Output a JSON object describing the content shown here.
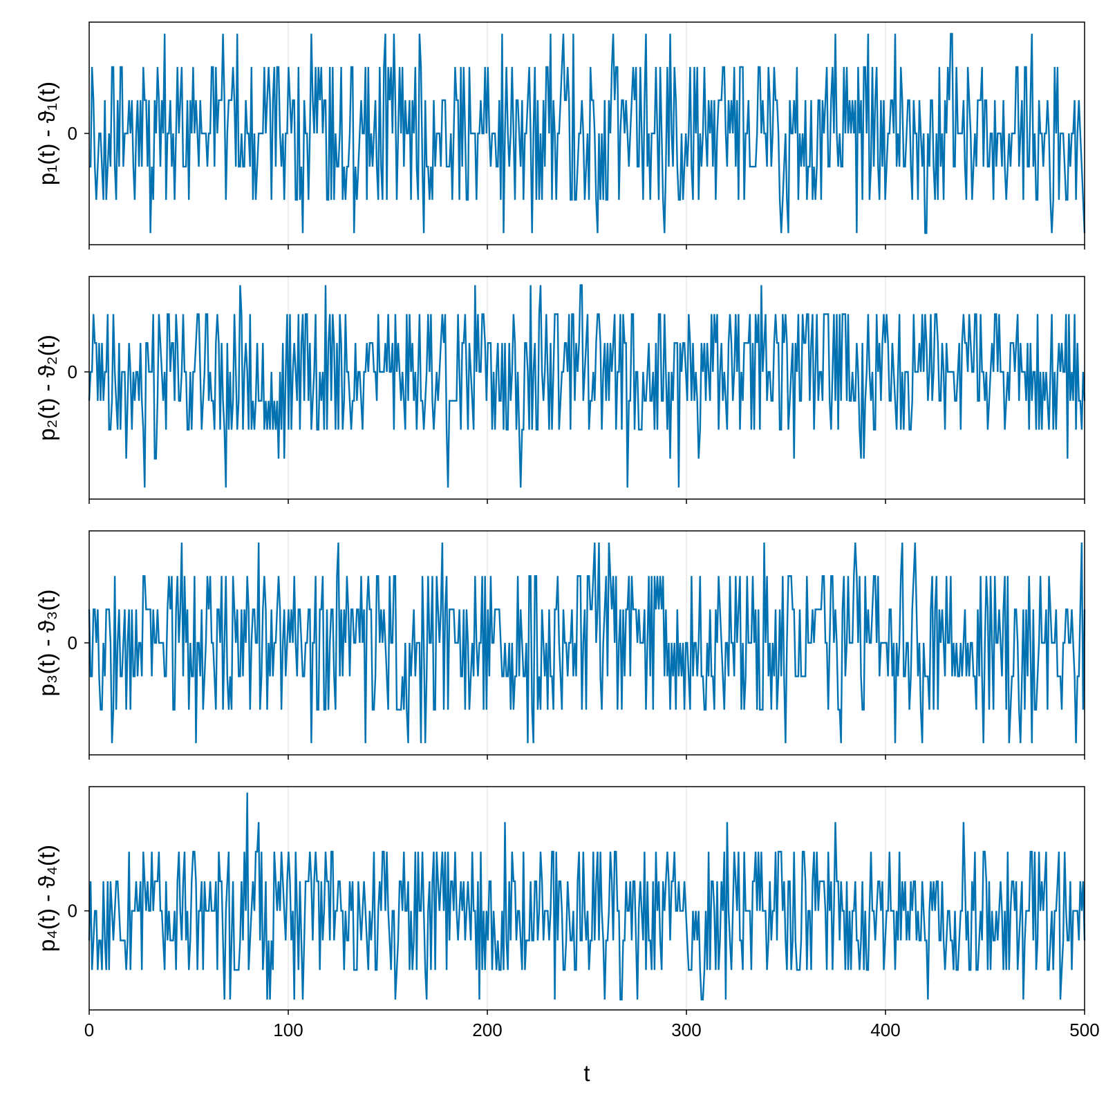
{
  "chart_data": [
    {
      "type": "line",
      "ylabel": "p₁(t) - ϑ₁(t)",
      "xlim": [
        0,
        500
      ],
      "ylim": [
        -3.35,
        3.35
      ],
      "x_ticks": [
        "0",
        "100",
        "200",
        "300",
        "400",
        "500"
      ],
      "y_ticks": [
        {
          "value": 0,
          "label": "0"
        }
      ],
      "levels": [
        -3,
        -2,
        -1,
        0,
        1,
        2,
        3
      ],
      "x_grid": true,
      "color": "#0072b2",
      "series": [
        {
          "x": [
            0,
            500
          ],
          "values": [
            -3,
            3
          ]
        }
      ]
    },
    {
      "type": "line",
      "ylabel": "p₂(t) - ϑ₂(t)",
      "xlim": [
        0,
        500
      ],
      "ylim": [
        -4.4,
        3.3
      ],
      "x_ticks": [
        "0",
        "100",
        "200",
        "300",
        "400",
        "500"
      ],
      "y_ticks": [
        {
          "value": 0,
          "label": "0"
        }
      ],
      "levels": [
        -4,
        -3,
        -2,
        -1,
        0,
        1,
        2,
        3
      ],
      "x_grid": true,
      "color": "#0072b2",
      "series": [
        {
          "x": [
            0,
            500
          ],
          "values": [
            -4,
            3
          ]
        }
      ]
    },
    {
      "type": "line",
      "ylabel": "p₃(t) - ϑ₃(t)",
      "xlim": [
        0,
        500
      ],
      "ylim": [
        -3.35,
        3.35
      ],
      "x_ticks": [
        "0",
        "100",
        "200",
        "300",
        "400",
        "500"
      ],
      "y_ticks": [
        {
          "value": 0,
          "label": "0"
        }
      ],
      "levels": [
        -3,
        -2,
        -1,
        0,
        1,
        2,
        3
      ],
      "x_grid": true,
      "color": "#0072b2",
      "series": [
        {
          "x": [
            0,
            500
          ],
          "values": [
            -3,
            4
          ]
        }
      ]
    },
    {
      "type": "line",
      "ylabel": "p₄(t) - ϑ₄(t)",
      "xlim": [
        0,
        500
      ],
      "ylim": [
        -3.35,
        4.2
      ],
      "x_ticks": [
        "0",
        "100",
        "200",
        "300",
        "400",
        "500"
      ],
      "y_ticks": [
        {
          "value": 0,
          "label": "0"
        }
      ],
      "levels": [
        -3,
        -2,
        -1,
        0,
        1,
        2,
        3,
        4
      ],
      "x_grid": true,
      "color": "#0072b2",
      "series": [
        {
          "x": [
            0,
            500
          ],
          "values": [
            -3,
            4
          ]
        }
      ]
    }
  ],
  "xlabel": "t"
}
